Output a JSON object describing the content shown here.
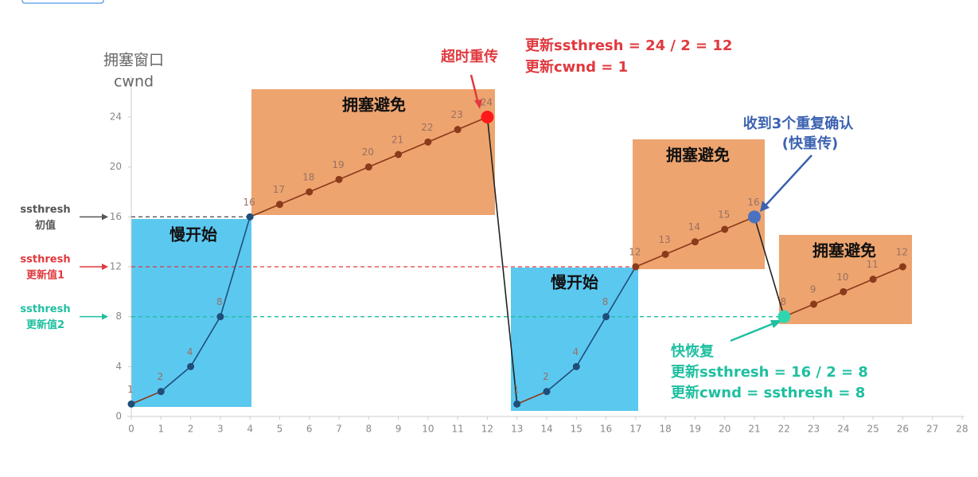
{
  "chart_data": {
    "type": "line",
    "y_label": [
      "拥塞窗口",
      "cwnd"
    ],
    "x": [
      0,
      1,
      2,
      3,
      4,
      5,
      6,
      7,
      8,
      9,
      10,
      11,
      12,
      13,
      14,
      15,
      16,
      17,
      18,
      19,
      20,
      21,
      22,
      23,
      24,
      25,
      26
    ],
    "values": [
      1,
      2,
      4,
      8,
      16,
      17,
      18,
      19,
      20,
      21,
      22,
      23,
      24,
      1,
      2,
      4,
      8,
      12,
      13,
      14,
      15,
      16,
      8,
      9,
      10,
      11,
      12
    ],
    "colors": {
      "slow_start": "#1f4e79",
      "avoidance": "#8b3a1a",
      "drop": "#222222",
      "point": "#3a3a3a"
    },
    "xlim": [
      0,
      28
    ],
    "ylim": [
      0,
      27
    ],
    "xticks": [
      0,
      1,
      2,
      3,
      4,
      5,
      6,
      7,
      8,
      9,
      10,
      11,
      12,
      13,
      14,
      15,
      16,
      17,
      18,
      19,
      20,
      21,
      22,
      23,
      24,
      25,
      26,
      27,
      28
    ],
    "yticks": [
      0,
      4,
      8,
      12,
      16,
      20,
      24
    ],
    "regions": [
      {
        "label": "慢开始",
        "color": "#5bc8f0"
      },
      {
        "label": "拥塞避免",
        "color": "#eda46f"
      },
      {
        "label": "慢开始",
        "color": "#5bc8f0"
      },
      {
        "label": "拥塞避免",
        "color": "#eda46f"
      },
      {
        "label": "拥塞避免",
        "color": "#eda46f"
      }
    ],
    "thresholds": [
      {
        "lines": [
          "ssthresh",
          "初值"
        ],
        "value": 16,
        "color": "#555555"
      },
      {
        "lines": [
          "ssthresh",
          "更新值1"
        ],
        "value": 12,
        "color": "#e0393e"
      },
      {
        "lines": [
          "ssthresh",
          "更新值2"
        ],
        "value": 8,
        "color": "#1fbfa0"
      }
    ],
    "highlights": [
      {
        "x": 12,
        "color": "#ff1a1a"
      },
      {
        "x": 21,
        "color": "#4a72c0"
      },
      {
        "x": 22,
        "color": "#2fd6b0"
      }
    ],
    "annotations": {
      "timeout": {
        "title": "超时重传",
        "lines": [
          "更新ssthresh = 24 / 2 = 12",
          "更新cwnd = 1"
        ],
        "color": "#e0393e"
      },
      "fast_retransmit": {
        "lines": [
          "收到3个重复确认",
          "(快重传)"
        ],
        "color": "#3b62b0"
      },
      "fast_recovery": {
        "lines": [
          "快恢复",
          "更新ssthresh = 16 / 2 = 8",
          "更新cwnd = ssthresh = 8"
        ],
        "color": "#1fbfa0"
      }
    }
  }
}
